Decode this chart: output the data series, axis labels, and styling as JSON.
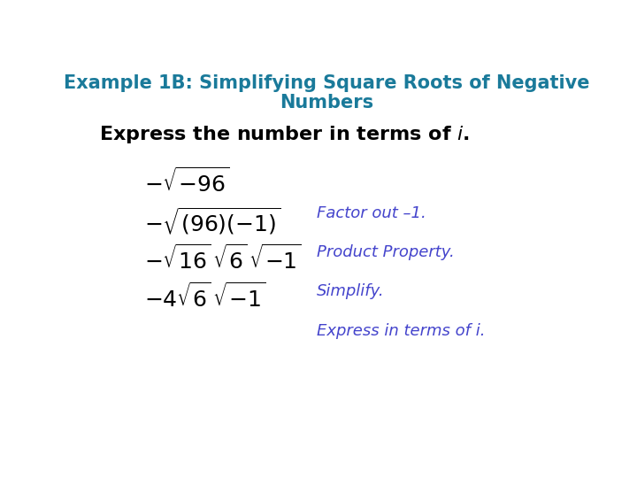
{
  "title_line1": "Example 1B: Simplifying Square Roots of Negative",
  "title_line2": "Numbers",
  "title_color": "#1a7a9a",
  "subtitle_color": "#000000",
  "bg_color": "#ffffff",
  "math_color": "#000000",
  "annotation_color": "#4444cc",
  "step2_note": "Factor out -1.",
  "step3_note": "Product Property.",
  "step4_note": "Simplify.",
  "step5_note": "Express in terms of i.",
  "title_fontsize": 15,
  "subtitle_fontsize": 16,
  "math_fontsize": 18,
  "note_fontsize": 13
}
